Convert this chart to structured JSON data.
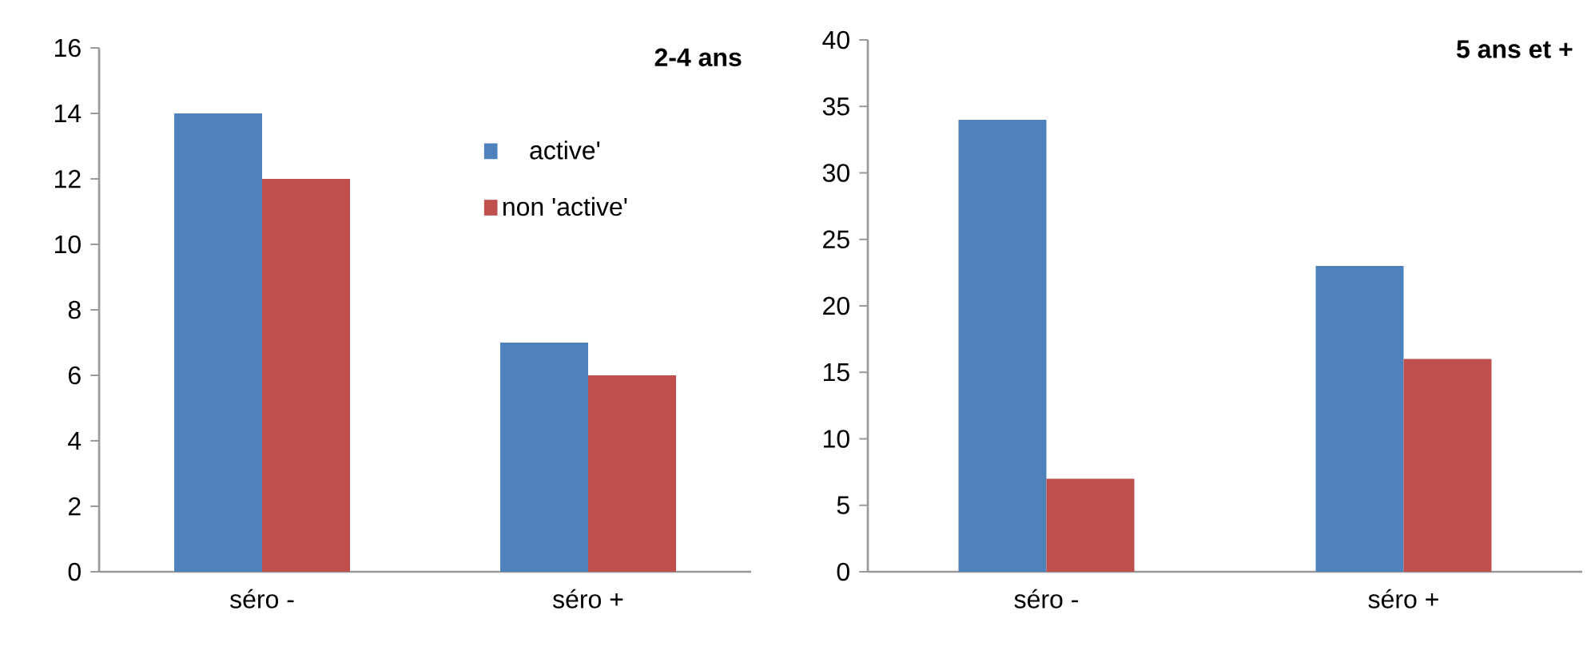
{
  "chart_data": [
    {
      "type": "bar",
      "title": "2-4 ans",
      "categories": [
        "séro -",
        "séro +"
      ],
      "series": [
        {
          "name": "active'",
          "color": "#4f81bd",
          "values": [
            14,
            7
          ]
        },
        {
          "name": "non 'active'",
          "color": "#c0504d",
          "values": [
            12,
            6
          ]
        }
      ],
      "ylim": [
        0,
        16
      ],
      "yticks": [
        0,
        2,
        4,
        6,
        8,
        10,
        12,
        14,
        16
      ],
      "legend": "right"
    },
    {
      "type": "bar",
      "title": "5 ans et +",
      "categories": [
        "séro -",
        "séro +"
      ],
      "series": [
        {
          "color": "#4f81bd",
          "values": [
            34,
            23
          ]
        },
        {
          "color": "#c0504d",
          "values": [
            7,
            16
          ]
        }
      ],
      "ylim": [
        0,
        40
      ],
      "yticks": [
        0,
        5,
        10,
        15,
        20,
        25,
        30,
        35,
        40
      ]
    }
  ]
}
